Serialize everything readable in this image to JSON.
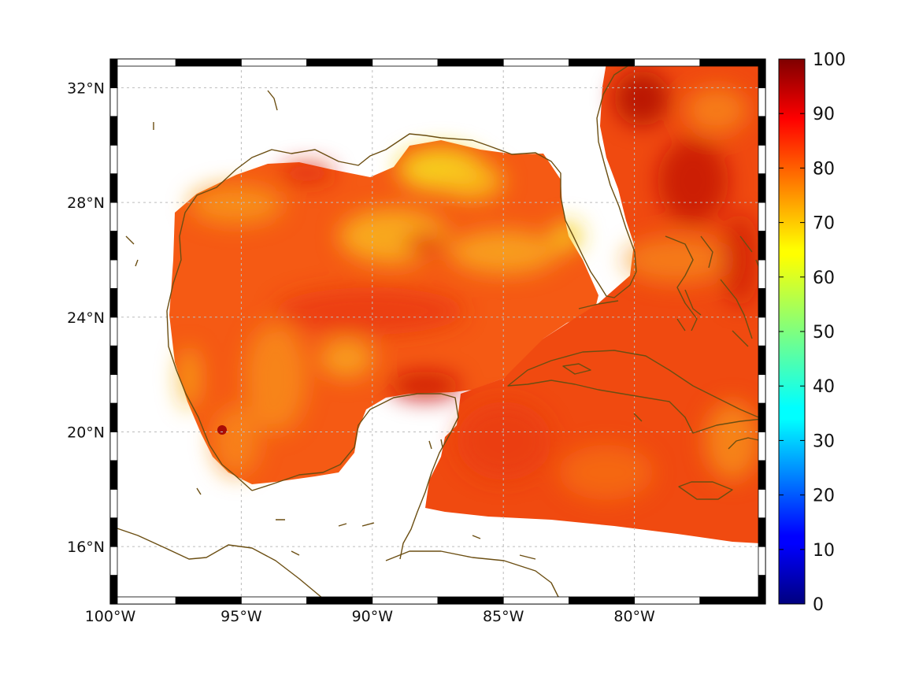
{
  "chart_data": {
    "type": "heatmap",
    "title": "",
    "xlabel": "",
    "ylabel": "",
    "projection": "map (lon/lat)",
    "xlim": [
      -100,
      -75
    ],
    "ylim": [
      14,
      33
    ],
    "x_ticks": [
      {
        "value": -100,
        "label": "100°W"
      },
      {
        "value": -95,
        "label": "95°W"
      },
      {
        "value": -90,
        "label": "90°W"
      },
      {
        "value": -85,
        "label": "85°W"
      },
      {
        "value": -80,
        "label": "80°W"
      }
    ],
    "y_ticks": [
      {
        "value": 16,
        "label": "16°N"
      },
      {
        "value": 20,
        "label": "20°N"
      },
      {
        "value": 24,
        "label": "24°N"
      },
      {
        "value": 28,
        "label": "28°N"
      },
      {
        "value": 32,
        "label": "32°N"
      }
    ],
    "grid": true,
    "colorbar": {
      "colormap": "jet",
      "range": [
        0,
        100
      ],
      "ticks": [
        {
          "value": 0,
          "label": "0"
        },
        {
          "value": 10,
          "label": "10"
        },
        {
          "value": 20,
          "label": "20"
        },
        {
          "value": 30,
          "label": "30"
        },
        {
          "value": 40,
          "label": "40"
        },
        {
          "value": 50,
          "label": "50"
        },
        {
          "value": 60,
          "label": "60"
        },
        {
          "value": 70,
          "label": "70"
        },
        {
          "value": 80,
          "label": "80"
        },
        {
          "value": 90,
          "label": "90"
        },
        {
          "value": 100,
          "label": "100"
        }
      ],
      "placement": "right"
    },
    "field_range_visible": [
      62,
      96
    ],
    "dominant_value": 82,
    "coastline_color": "#6b4e12",
    "ocean_no_data_color": "#ffffff"
  }
}
